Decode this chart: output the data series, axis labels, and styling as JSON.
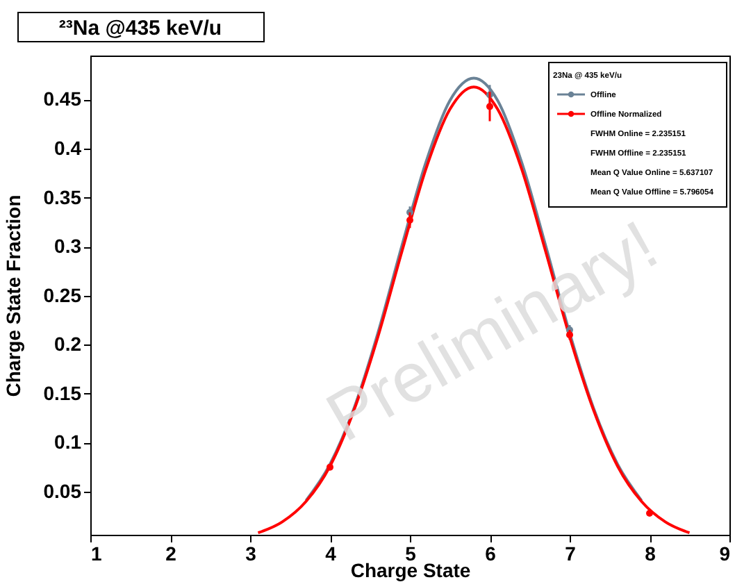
{
  "chart_data": {
    "type": "line",
    "title": "²³Na @435 keV/u",
    "xlabel": "Charge State",
    "ylabel": "Charge State Fraction",
    "legend_title": "23Na @ 435 keV/u",
    "xlim": [
      1,
      9
    ],
    "xticks": [
      1,
      2,
      3,
      4,
      5,
      6,
      7,
      8,
      9
    ],
    "ylim": [
      0.006,
      0.495
    ],
    "yticks": [
      0.05,
      0.1,
      0.15,
      0.2,
      0.25,
      0.3,
      0.35,
      0.4,
      0.45
    ],
    "grid": false,
    "legend": "top right",
    "series": [
      {
        "color": "#6a8296",
        "line_style": "solid",
        "x": [
          3.7,
          4.0,
          4.3,
          4.6,
          4.9,
          5.2,
          5.5,
          5.8,
          6.1,
          6.4,
          6.7,
          7.0,
          7.3,
          7.6,
          7.9
        ],
        "values": [
          0.041,
          0.078,
          0.135,
          0.212,
          0.301,
          0.386,
          0.449,
          0.472,
          0.449,
          0.386,
          0.301,
          0.212,
          0.135,
          0.078,
          0.041
        ]
      },
      {
        "color": "#ff0000",
        "line_style": "solid",
        "x": [
          3.1,
          3.4,
          3.7,
          4.0,
          4.3,
          4.6,
          4.9,
          5.2,
          5.5,
          5.8,
          6.1,
          6.4,
          6.7,
          7.0,
          7.3,
          7.6,
          7.9,
          8.2,
          8.5
        ],
        "values": [
          0.008,
          0.019,
          0.04,
          0.076,
          0.133,
          0.208,
          0.295,
          0.379,
          0.44,
          0.463,
          0.44,
          0.379,
          0.295,
          0.208,
          0.133,
          0.076,
          0.04,
          0.019,
          0.008
        ]
      },
      {
        "type": "scatter",
        "name": "Offline",
        "color": "#6a8296",
        "marker": "circle",
        "x": [
          5,
          6,
          7
        ],
        "values": [
          0.335,
          0.455,
          0.215
        ],
        "errors": [
          0.006,
          0.01,
          0.005
        ]
      },
      {
        "type": "scatter",
        "name": "Offline Normalized",
        "color": "#ff0000",
        "marker": "circle",
        "x": [
          4,
          5,
          6,
          7,
          8
        ],
        "values": [
          0.075,
          0.327,
          0.443,
          0.21,
          0.028
        ],
        "errors": [
          null,
          0.008,
          0.015,
          0.005,
          null
        ]
      }
    ],
    "annotations": [
      "FWHM Online = 2.235151",
      "FWHM Offline = 2.235151",
      "Mean Q Value Online = 5.637107",
      "Mean Q Value Offline = 5.796054",
      "Preliminary!"
    ]
  }
}
